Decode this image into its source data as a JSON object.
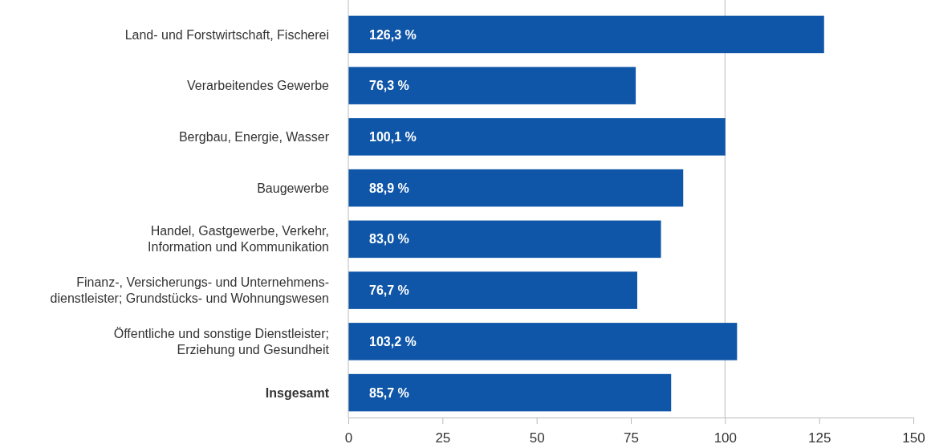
{
  "chart_data": {
    "type": "bar",
    "orientation": "horizontal",
    "categories": [
      "Land- und Forstwirtschaft, Fischerei",
      "Verarbeitendes Gewerbe",
      "Bergbau, Energie, Wasser",
      "Baugewerbe",
      "Handel, Gastgewerbe, Verkehr,\nInformation und Kommunikation",
      "Finanz-, Versicherungs- und Unternehmens-\ndienstleister; Grundstücks- und Wohnungswesen",
      "Öffentliche und sonstige Dienstleister;\nErziehung und Gesundheit",
      "Insgesamt"
    ],
    "values": [
      126.3,
      76.3,
      100.1,
      88.9,
      83.0,
      76.7,
      103.2,
      85.7
    ],
    "value_labels": [
      "126,3 %",
      "76,3 %",
      "100,1 %",
      "88,9 %",
      "83,0 %",
      "76,7 %",
      "103,2 %",
      "85,7 %"
    ],
    "color": "#0f56a8",
    "xlim": [
      0,
      150
    ],
    "xticks": [
      0,
      25,
      50,
      75,
      100,
      125,
      150
    ],
    "ref_lines": [
      {
        "axis": "x",
        "value": 100,
        "color": "#c8c8c8"
      }
    ],
    "grid": false
  }
}
